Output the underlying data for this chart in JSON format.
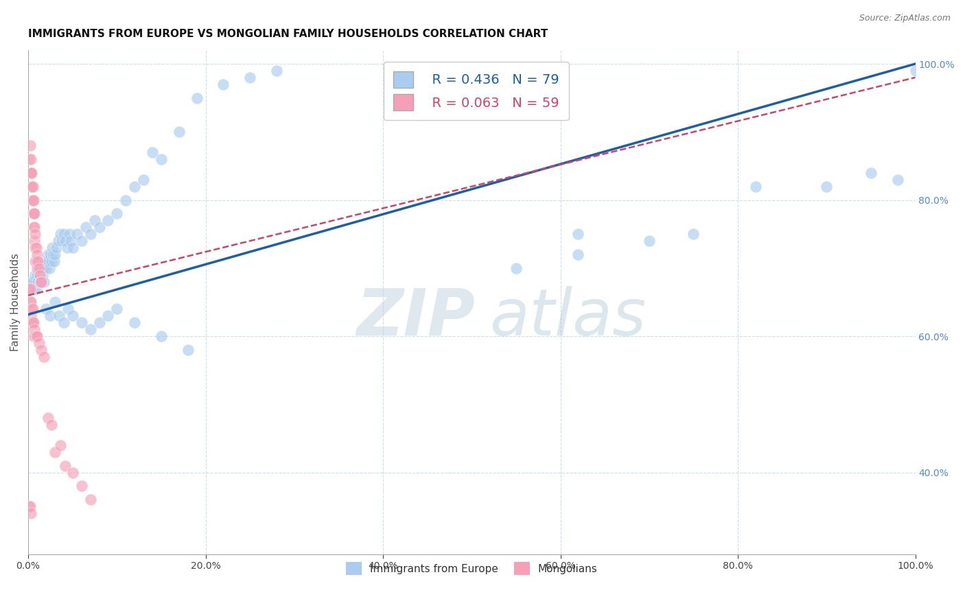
{
  "title": "IMMIGRANTS FROM EUROPE VS MONGOLIAN FAMILY HOUSEHOLDS CORRELATION CHART",
  "source": "Source: ZipAtlas.com",
  "ylabel": "Family Households",
  "xlim": [
    0,
    1
  ],
  "ylim": [
    0.28,
    1.02
  ],
  "xticks": [
    0.0,
    0.2,
    0.4,
    0.6,
    0.8,
    1.0
  ],
  "yticks_right": [
    0.4,
    0.6,
    0.8,
    1.0
  ],
  "xticklabels": [
    "0.0%",
    "20.0%",
    "40.0%",
    "60.0%",
    "80.0%",
    "100.0%"
  ],
  "right_yticklabels": [
    "40.0%",
    "60.0%",
    "80.0%",
    "100.0%"
  ],
  "legend_r1": "R = 0.436",
  "legend_n1": "N = 79",
  "legend_r2": "R = 0.063",
  "legend_n2": "N = 59",
  "blue_color": "#aaccee",
  "pink_color": "#f5a0b8",
  "blue_line_color": "#1a5fa8",
  "pink_line_color": "#cc4466",
  "grid_color": "#ccddee",
  "watermark_zip": "ZIP",
  "watermark_atlas": "atlas",
  "blue_scatter_x": [
    0.003,
    0.005,
    0.007,
    0.008,
    0.009,
    0.01,
    0.011,
    0.012,
    0.013,
    0.014,
    0.015,
    0.016,
    0.017,
    0.018,
    0.019,
    0.02,
    0.021,
    0.022,
    0.023,
    0.024,
    0.025,
    0.026,
    0.027,
    0.028,
    0.029,
    0.03,
    0.032,
    0.034,
    0.036,
    0.038,
    0.04,
    0.042,
    0.044,
    0.046,
    0.048,
    0.05,
    0.055,
    0.06,
    0.065,
    0.07,
    0.075,
    0.08,
    0.09,
    0.1,
    0.11,
    0.12,
    0.13,
    0.14,
    0.15,
    0.17,
    0.19,
    0.22,
    0.25,
    0.28,
    0.02,
    0.025,
    0.03,
    0.035,
    0.04,
    0.045,
    0.05,
    0.06,
    0.07,
    0.08,
    0.09,
    0.1,
    0.12,
    0.15,
    0.18,
    0.55,
    0.62,
    0.7,
    0.75,
    0.82,
    0.9,
    0.95,
    0.98,
    1.0,
    0.62
  ],
  "blue_scatter_y": [
    0.68,
    0.68,
    0.67,
    0.69,
    0.67,
    0.69,
    0.68,
    0.7,
    0.69,
    0.68,
    0.7,
    0.69,
    0.7,
    0.68,
    0.71,
    0.7,
    0.71,
    0.72,
    0.71,
    0.7,
    0.72,
    0.71,
    0.73,
    0.72,
    0.71,
    0.72,
    0.73,
    0.74,
    0.75,
    0.74,
    0.75,
    0.74,
    0.73,
    0.75,
    0.74,
    0.73,
    0.75,
    0.74,
    0.76,
    0.75,
    0.77,
    0.76,
    0.77,
    0.78,
    0.8,
    0.82,
    0.83,
    0.87,
    0.86,
    0.9,
    0.95,
    0.97,
    0.98,
    0.99,
    0.64,
    0.63,
    0.65,
    0.63,
    0.62,
    0.64,
    0.63,
    0.62,
    0.61,
    0.62,
    0.63,
    0.64,
    0.62,
    0.6,
    0.58,
    0.7,
    0.72,
    0.74,
    0.75,
    0.82,
    0.82,
    0.84,
    0.83,
    0.99,
    0.75
  ],
  "pink_scatter_x": [
    0.001,
    0.002,
    0.002,
    0.003,
    0.003,
    0.003,
    0.004,
    0.004,
    0.004,
    0.005,
    0.005,
    0.005,
    0.006,
    0.006,
    0.006,
    0.007,
    0.007,
    0.007,
    0.008,
    0.008,
    0.008,
    0.009,
    0.009,
    0.01,
    0.01,
    0.011,
    0.012,
    0.013,
    0.014,
    0.015,
    0.001,
    0.002,
    0.002,
    0.003,
    0.003,
    0.004,
    0.004,
    0.005,
    0.005,
    0.006,
    0.006,
    0.007,
    0.008,
    0.009,
    0.01,
    0.012,
    0.015,
    0.018,
    0.022,
    0.026,
    0.03,
    0.036,
    0.042,
    0.05,
    0.06,
    0.07,
    0.001,
    0.002,
    0.003
  ],
  "pink_scatter_y": [
    0.86,
    0.88,
    0.84,
    0.86,
    0.82,
    0.84,
    0.84,
    0.82,
    0.8,
    0.82,
    0.8,
    0.78,
    0.8,
    0.78,
    0.76,
    0.78,
    0.76,
    0.74,
    0.75,
    0.73,
    0.71,
    0.73,
    0.71,
    0.72,
    0.7,
    0.71,
    0.7,
    0.69,
    0.68,
    0.68,
    0.67,
    0.67,
    0.65,
    0.65,
    0.63,
    0.64,
    0.62,
    0.64,
    0.62,
    0.62,
    0.6,
    0.61,
    0.6,
    0.6,
    0.6,
    0.59,
    0.58,
    0.57,
    0.48,
    0.47,
    0.43,
    0.44,
    0.41,
    0.4,
    0.38,
    0.36,
    0.35,
    0.35,
    0.34
  ],
  "blue_line_x0": 0.0,
  "blue_line_x1": 1.0,
  "blue_line_y0": 0.632,
  "blue_line_y1": 1.0,
  "pink_line_x0": 0.0,
  "pink_line_x1": 1.0,
  "pink_line_y0": 0.66,
  "pink_line_y1": 0.98
}
